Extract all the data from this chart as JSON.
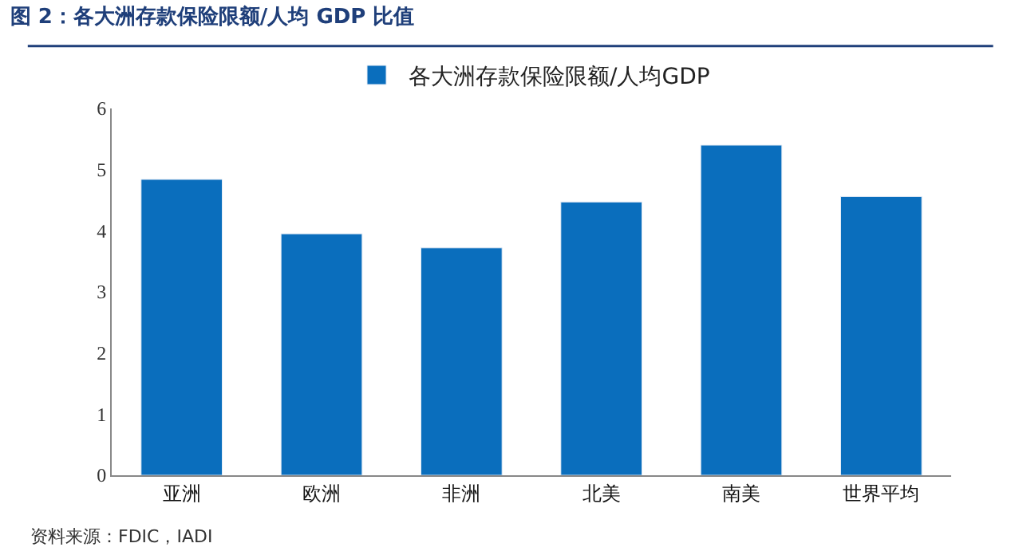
{
  "chart_data": {
    "type": "bar",
    "title": "图 2：各大洲存款保险限额/人均 GDP 比值",
    "categories": [
      "亚洲",
      "欧洲",
      "非洲",
      "北美",
      "南美",
      "世界平均"
    ],
    "series": [
      {
        "name": "各大洲存款保险限额/人均GDP",
        "color": "#0a6ebd",
        "values": [
          4.84,
          3.95,
          3.72,
          4.47,
          5.4,
          4.56
        ]
      }
    ],
    "ylim": [
      0,
      6
    ],
    "yticks": [
      0,
      1,
      2,
      3,
      4,
      5,
      6
    ],
    "legend": "top",
    "annotations": [
      "资料来源：FDIC，IADI"
    ]
  }
}
